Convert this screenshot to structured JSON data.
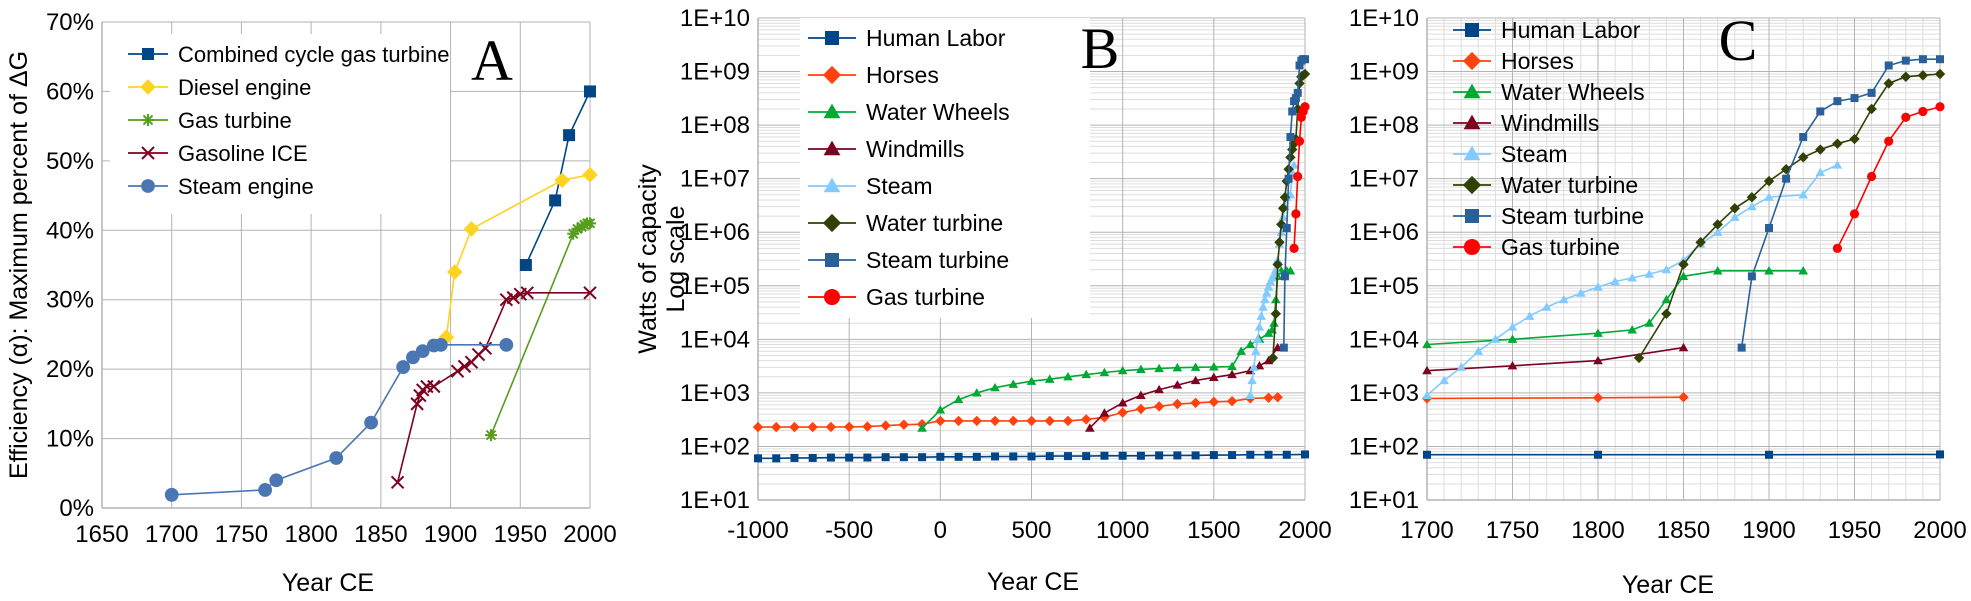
{
  "chart_data": [
    {
      "panel": "A",
      "type": "line",
      "panel_label": "A",
      "xlabel": "Year CE",
      "ylabel": "Efficiency (α): Maximum percent of ΔG",
      "xlim": [
        1650,
        2000
      ],
      "ylim": [
        0,
        70
      ],
      "x_ticks": [
        "1650",
        "1700",
        "1750",
        "1800",
        "1850",
        "1900",
        "1950",
        "2000"
      ],
      "y_ticks": [
        "0%",
        "10%",
        "20%",
        "30%",
        "40%",
        "50%",
        "60%",
        "70%"
      ],
      "y_format": "percent",
      "grid": true,
      "legend_position": "top-left",
      "series": [
        {
          "name": "Combined cycle gas turbine",
          "color": "#004586",
          "marker": "square",
          "x": [
            1954,
            1975,
            1985,
            2000
          ],
          "y": [
            35,
            44.3,
            53.7,
            60
          ]
        },
        {
          "name": "Diesel engine",
          "color": "#ffd320",
          "marker": "diamond",
          "x": [
            1897,
            1903,
            1915,
            1980,
            2000
          ],
          "y": [
            24.6,
            34,
            40.2,
            47.2,
            48
          ]
        },
        {
          "name": "Gas turbine",
          "color": "#579d1c",
          "marker": "asterisk",
          "x": [
            1929,
            1988,
            1991,
            1994,
            1996,
            1998,
            2000
          ],
          "y": [
            10.5,
            39.5,
            40.2,
            40.5,
            40.8,
            41,
            41
          ]
        },
        {
          "name": "Gasoline ICE",
          "color": "#7e0021",
          "marker": "x",
          "x": [
            1862,
            1876,
            1878,
            1880,
            1883,
            1888,
            1905,
            1910,
            1915,
            1920,
            1925,
            1940,
            1945,
            1950,
            1955,
            2000
          ],
          "y": [
            3.7,
            15,
            16.2,
            17,
            17.5,
            17.5,
            19.7,
            20.4,
            21,
            22.1,
            23,
            30,
            30.3,
            30.8,
            31,
            31
          ]
        },
        {
          "name": "Steam engine",
          "color": "#4a77b4",
          "marker": "circle",
          "x": [
            1700,
            1767,
            1775,
            1818,
            1843,
            1866,
            1873,
            1880,
            1888,
            1893,
            1940
          ],
          "y": [
            1.9,
            2.6,
            4,
            7.2,
            12.3,
            20.3,
            21.7,
            22.6,
            23.4,
            23.5,
            23.5
          ]
        }
      ]
    },
    {
      "panel": "B",
      "type": "line",
      "panel_label": "B",
      "xlabel": "Year CE",
      "ylabel": "Watts of capacity",
      "ylabel2": "Log scale",
      "xlim": [
        -1000,
        2000
      ],
      "y_scale": "log",
      "ylim": [
        10,
        10000000000
      ],
      "x_ticks": [
        "-1000",
        "-500",
        "0",
        "500",
        "1000",
        "1500",
        "2000"
      ],
      "y_ticks": [
        "1E+01",
        "1E+02",
        "1E+03",
        "1E+04",
        "1E+05",
        "1E+06",
        "1E+07",
        "1E+08",
        "1E+09",
        "1E+10"
      ],
      "grid": true,
      "legend_position": "top-left",
      "series": [
        {
          "name": "Human Labor",
          "color": "#004586",
          "marker": "square",
          "x": [
            -1000,
            -900,
            -800,
            -700,
            -600,
            -500,
            -400,
            -300,
            -200,
            -100,
            0,
            100,
            200,
            300,
            400,
            500,
            600,
            700,
            800,
            900,
            1000,
            1100,
            1200,
            1300,
            1400,
            1500,
            1600,
            1700,
            1800,
            1900,
            2000
          ],
          "y": [
            60,
            60,
            61,
            61,
            62,
            62,
            62,
            63,
            63,
            63,
            64,
            64,
            64,
            65,
            65,
            65,
            66,
            66,
            66,
            67,
            67,
            67,
            68,
            68,
            68,
            69,
            69,
            70,
            70,
            70,
            71
          ]
        },
        {
          "name": "Horses",
          "color": "#ff420e",
          "marker": "diamond",
          "x": [
            -1000,
            -900,
            -800,
            -700,
            -600,
            -500,
            -400,
            -300,
            -200,
            -100,
            0,
            100,
            200,
            300,
            400,
            500,
            600,
            700,
            800,
            900,
            1000,
            1100,
            1200,
            1300,
            1400,
            1500,
            1600,
            1700,
            1800,
            1850
          ],
          "y": [
            230,
            230,
            230,
            230,
            231,
            232,
            235,
            245,
            255,
            260,
            300,
            300,
            300,
            300,
            300,
            300,
            300,
            300,
            320,
            350,
            430,
            500,
            560,
            620,
            650,
            680,
            700,
            790,
            810,
            830
          ]
        },
        {
          "name": "Water Wheels",
          "color": "#00a933",
          "marker": "triangle",
          "x": [
            -100,
            0,
            100,
            200,
            300,
            400,
            500,
            600,
            700,
            800,
            900,
            1000,
            1100,
            1200,
            1300,
            1400,
            1500,
            1600,
            1650,
            1700,
            1750,
            1800,
            1820,
            1830,
            1840,
            1850,
            1870,
            1900,
            1920
          ],
          "y": [
            220,
            480,
            750,
            1000,
            1250,
            1450,
            1650,
            1800,
            2000,
            2200,
            2400,
            2600,
            2750,
            2850,
            2950,
            3000,
            3050,
            3100,
            6000,
            8000,
            10000,
            13000,
            15000,
            20000,
            55000,
            150000,
            190000,
            190000,
            190000
          ]
        },
        {
          "name": "Windmills",
          "color": "#7e0021",
          "marker": "triangle",
          "x": [
            820,
            900,
            1000,
            1100,
            1200,
            1300,
            1400,
            1500,
            1600,
            1700,
            1750,
            1800,
            1850
          ],
          "y": [
            220,
            420,
            650,
            900,
            1150,
            1400,
            1700,
            1950,
            2200,
            2600,
            3200,
            4000,
            7000
          ]
        },
        {
          "name": "Steam",
          "color": "#83caff",
          "marker": "triangle",
          "x": [
            1700,
            1710,
            1720,
            1730,
            1740,
            1750,
            1760,
            1770,
            1780,
            1790,
            1800,
            1810,
            1820,
            1830,
            1840,
            1850,
            1860,
            1870,
            1880,
            1890,
            1900,
            1920,
            1930,
            1940
          ],
          "y": [
            900,
            1700,
            3000,
            6000,
            10000,
            17000,
            27000,
            40000,
            55000,
            73000,
            95000,
            120000,
            140000,
            165000,
            200000,
            300000,
            600000,
            1000000,
            1900000,
            3000000,
            4500000,
            5000000,
            13000000,
            18000000
          ]
        },
        {
          "name": "Water turbine",
          "color": "#314004",
          "marker": "diamond",
          "x": [
            1824,
            1840,
            1850,
            1860,
            1870,
            1880,
            1890,
            1900,
            1910,
            1920,
            1930,
            1940,
            1950,
            1960,
            1970,
            1980,
            1990,
            2000
          ],
          "y": [
            4500,
            30000,
            250000,
            650000,
            1400000,
            2800000,
            4500000,
            9000000,
            15000000,
            25000000,
            35000000,
            45000000,
            55000000,
            200000000,
            600000000,
            800000000,
            850000000,
            900000000
          ]
        },
        {
          "name": "Steam turbine",
          "color": "#2a6099",
          "marker": "square",
          "x": [
            1884,
            1890,
            1900,
            1910,
            1920,
            1930,
            1940,
            1950,
            1960,
            1970,
            1980,
            1990,
            2000
          ],
          "y": [
            7000,
            150000,
            1200000,
            10000000,
            60000000,
            180000000,
            280000000,
            320000000,
            400000000,
            1300000000,
            1600000000,
            1700000000,
            1700000000
          ]
        },
        {
          "name": "Gas turbine",
          "color": "#ff0000",
          "marker": "circle",
          "x": [
            1940,
            1950,
            1960,
            1970,
            1980,
            1990,
            2000
          ],
          "y": [
            500000,
            2200000,
            11000000,
            50000000,
            140000000,
            180000000,
            220000000
          ]
        }
      ]
    },
    {
      "panel": "C",
      "type": "line",
      "panel_label": "C",
      "xlabel": "Year CE",
      "ylabel": "",
      "xlim": [
        1700,
        2000
      ],
      "y_scale": "log",
      "ylim": [
        10,
        10000000000
      ],
      "x_ticks": [
        "1700",
        "1750",
        "1800",
        "1850",
        "1900",
        "1950",
        "2000"
      ],
      "y_ticks": [
        "1E+01",
        "1E+02",
        "1E+03",
        "1E+04",
        "1E+05",
        "1E+06",
        "1E+07",
        "1E+08",
        "1E+09",
        "1E+10"
      ],
      "grid": true,
      "legend_position": "top-left",
      "series_ref": "same series as panel B, restricted to 1700–2000",
      "series_names": [
        "Human Labor",
        "Horses",
        "Water Wheels",
        "Windmills",
        "Steam",
        "Water turbine",
        "Steam turbine",
        "Gas turbine"
      ]
    }
  ]
}
